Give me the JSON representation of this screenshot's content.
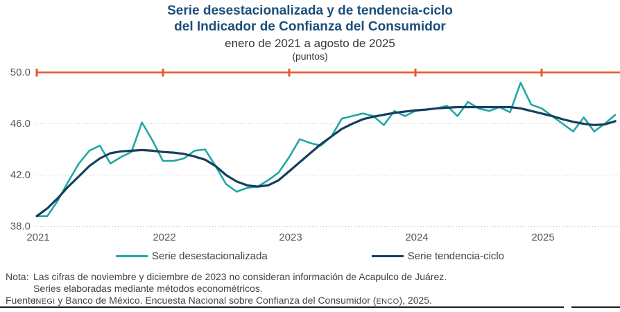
{
  "title": {
    "line1": "Serie desestacionalizada y de tendencia-ciclo",
    "line2": "del Indicador de Confianza del Consumidor",
    "subtitle": "enero de 2021 a agosto de 2025",
    "units": "(puntos)"
  },
  "chart_data": {
    "type": "line",
    "title": "Serie desestacionalizada y de tendencia-ciclo del Indicador de Confianza del Consumidor",
    "x_unit": "month",
    "x_start": "2021-01",
    "x_end": "2025-08",
    "ylim": [
      38.0,
      50.0
    ],
    "grid": "dotted horizontal at 38, 42, 46; solid orange top axis at 50 with year ticks",
    "legend_position": "bottom",
    "y_ticks": [
      "50.0",
      "46.0",
      "42.0",
      "38.0"
    ],
    "y_tick_values": [
      50.0,
      46.0,
      42.0,
      38.0
    ],
    "year_ticks": [
      "2021",
      "2022",
      "2023",
      "2024",
      "2025"
    ],
    "top_axis_color": "#E6582C",
    "series": [
      {
        "name": "Serie desestacionalizada",
        "color": "#21A6A4",
        "values": [
          38.8,
          38.8,
          40.0,
          41.5,
          42.9,
          43.9,
          44.3,
          42.9,
          43.4,
          43.8,
          46.1,
          44.7,
          43.1,
          43.1,
          43.3,
          43.9,
          44.0,
          42.7,
          41.3,
          40.7,
          41.0,
          41.1,
          41.6,
          42.2,
          43.4,
          44.8,
          44.5,
          44.3,
          45.0,
          46.4,
          46.6,
          46.8,
          46.6,
          45.9,
          47.0,
          46.6,
          47.0,
          47.1,
          47.2,
          47.4,
          46.6,
          47.7,
          47.2,
          47.0,
          47.3,
          46.9,
          49.2,
          47.5,
          47.2,
          46.6,
          46.0,
          45.4,
          46.5,
          45.4,
          46.0,
          46.7
        ]
      },
      {
        "name": "Serie tendencia-ciclo",
        "color": "#163F5F",
        "values": [
          38.8,
          39.4,
          40.2,
          41.1,
          41.9,
          42.7,
          43.3,
          43.7,
          43.85,
          43.9,
          43.95,
          43.9,
          43.8,
          43.75,
          43.65,
          43.45,
          43.2,
          42.7,
          42.0,
          41.5,
          41.2,
          41.1,
          41.2,
          41.6,
          42.3,
          43.0,
          43.7,
          44.4,
          45.0,
          45.6,
          46.0,
          46.35,
          46.55,
          46.7,
          46.85,
          46.95,
          47.05,
          47.1,
          47.2,
          47.25,
          47.3,
          47.3,
          47.3,
          47.3,
          47.3,
          47.3,
          47.2,
          47.0,
          46.8,
          46.6,
          46.35,
          46.15,
          46.0,
          45.9,
          45.95,
          46.2
        ]
      }
    ]
  },
  "legend": {
    "items": [
      {
        "label": "Serie desestacionalizada",
        "color": "#21A6A4"
      },
      {
        "label": "Serie tendencia-ciclo",
        "color": "#163F5F"
      }
    ]
  },
  "notes": {
    "nota_label": "Nota:",
    "nota_line1": "Las cifras de noviembre y diciembre de 2023 no consideran información de Acapulco de Juárez.",
    "nota_line2": "Series elaboradas mediante métodos econométricos.",
    "fuente_label": "Fuente:",
    "fuente_p1": "INEGI",
    "fuente_p2": " y Banco de México. Encuesta Nacional sobre Confianza del Consumidor (",
    "fuente_p3": "ENCO",
    "fuente_p4": "), 2025."
  }
}
